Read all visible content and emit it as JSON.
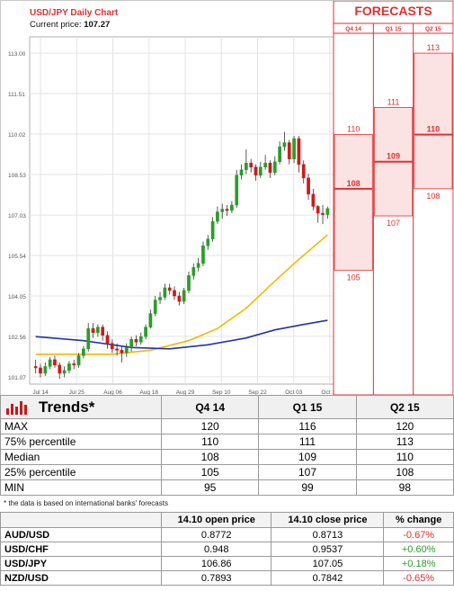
{
  "chart": {
    "title": "USD/JPY Daily Chart",
    "price_label": "Current price:",
    "price_value": "107.27",
    "forecasts_title": "FORECASTS"
  },
  "chart_data": {
    "type": "candlestick",
    "ylim": [
      100.8,
      113.6
    ],
    "y_ticks": [
      "113.00",
      "111.51",
      "110.02",
      "108.53",
      "107.03",
      "105.54",
      "104.05",
      "102.56",
      "101.07"
    ],
    "x_ticks": [
      "Jul 14",
      "Jul 25",
      "Aug 06",
      "Aug 18",
      "Aug 29",
      "Sep 10",
      "Sep 22",
      "Oct 03",
      "Oct 15"
    ],
    "candles": [
      [
        101.45,
        101.4,
        101.7,
        101.2
      ],
      [
        101.4,
        101.2,
        101.55,
        101.05
      ],
      [
        101.2,
        101.45,
        101.6,
        101.1
      ],
      [
        101.45,
        101.7,
        101.8,
        101.35
      ],
      [
        101.7,
        101.5,
        101.85,
        101.4
      ],
      [
        101.5,
        101.2,
        101.6,
        101.0
      ],
      [
        101.2,
        101.3,
        101.45,
        101.05
      ],
      [
        101.3,
        101.55,
        101.65,
        101.2
      ],
      [
        101.55,
        101.5,
        101.7,
        101.35
      ],
      [
        101.5,
        101.85,
        101.95,
        101.4
      ],
      [
        101.85,
        102.1,
        102.2,
        101.75
      ],
      [
        102.1,
        102.85,
        103.05,
        102.0
      ],
      [
        102.85,
        102.7,
        103.05,
        102.5
      ],
      [
        102.7,
        102.9,
        103.0,
        102.55
      ],
      [
        102.9,
        102.6,
        103.0,
        102.4
      ],
      [
        102.6,
        102.3,
        102.75,
        102.1
      ],
      [
        102.3,
        102.1,
        102.45,
        101.95
      ],
      [
        102.1,
        102.05,
        102.3,
        101.85
      ],
      [
        102.05,
        101.95,
        102.2,
        101.6
      ],
      [
        101.95,
        102.15,
        102.3,
        101.8
      ],
      [
        102.15,
        102.45,
        102.55,
        102.0
      ],
      [
        102.45,
        102.35,
        102.6,
        102.2
      ],
      [
        102.35,
        102.55,
        102.7,
        102.25
      ],
      [
        102.55,
        102.9,
        103.0,
        102.45
      ],
      [
        102.9,
        103.4,
        103.55,
        102.85
      ],
      [
        103.4,
        103.9,
        104.05,
        103.3
      ],
      [
        103.9,
        104.0,
        104.2,
        103.75
      ],
      [
        104.0,
        104.35,
        104.5,
        103.9
      ],
      [
        104.35,
        104.25,
        104.5,
        104.1
      ],
      [
        104.25,
        104.05,
        104.4,
        103.9
      ],
      [
        104.05,
        103.85,
        104.2,
        103.7
      ],
      [
        103.85,
        104.25,
        104.35,
        103.75
      ],
      [
        104.25,
        104.8,
        104.95,
        104.15
      ],
      [
        104.8,
        105.1,
        105.25,
        104.65
      ],
      [
        105.1,
        105.25,
        105.45,
        104.95
      ],
      [
        105.25,
        105.9,
        106.05,
        105.15
      ],
      [
        105.9,
        106.15,
        106.3,
        105.75
      ],
      [
        106.15,
        106.8,
        106.95,
        106.05
      ],
      [
        106.8,
        107.15,
        107.35,
        106.7
      ],
      [
        107.15,
        107.25,
        107.45,
        106.9
      ],
      [
        107.25,
        107.2,
        107.4,
        107.0
      ],
      [
        107.2,
        107.4,
        107.55,
        107.1
      ],
      [
        107.4,
        108.5,
        108.7,
        107.3
      ],
      [
        108.5,
        108.7,
        108.9,
        108.35
      ],
      [
        108.7,
        108.95,
        109.45,
        108.55
      ],
      [
        108.95,
        108.8,
        109.1,
        108.6
      ],
      [
        108.8,
        108.5,
        108.9,
        108.3
      ],
      [
        108.5,
        108.8,
        109.0,
        108.4
      ],
      [
        108.8,
        108.95,
        109.25,
        108.7
      ],
      [
        108.95,
        108.6,
        109.05,
        108.4
      ],
      [
        108.6,
        109.0,
        109.2,
        108.5
      ],
      [
        109.0,
        109.55,
        109.75,
        108.9
      ],
      [
        109.55,
        109.7,
        110.1,
        109.4
      ],
      [
        109.7,
        109.1,
        109.8,
        108.9
      ],
      [
        109.1,
        109.85,
        109.95,
        108.95
      ],
      [
        109.85,
        108.9,
        109.95,
        108.6
      ],
      [
        108.9,
        108.4,
        109.05,
        108.2
      ],
      [
        108.4,
        107.8,
        108.55,
        107.6
      ],
      [
        107.8,
        107.35,
        108.0,
        107.2
      ],
      [
        107.35,
        107.1,
        107.4,
        106.75
      ],
      [
        107.1,
        107.05,
        107.4,
        106.7
      ],
      [
        107.05,
        107.27,
        107.35,
        106.9
      ]
    ],
    "series": [
      {
        "name": "",
        "color": "#f5b800",
        "points": [
          [
            0,
            101.9
          ],
          [
            8,
            101.9
          ],
          [
            16,
            101.9
          ],
          [
            24,
            102.05
          ],
          [
            32,
            102.4
          ],
          [
            38,
            102.85
          ],
          [
            44,
            103.6
          ],
          [
            50,
            104.6
          ],
          [
            55,
            105.4
          ],
          [
            61,
            106.3
          ]
        ]
      },
      {
        "name": "",
        "color": "#2233aa",
        "points": [
          [
            0,
            102.55
          ],
          [
            10,
            102.4
          ],
          [
            20,
            102.15
          ],
          [
            28,
            102.1
          ],
          [
            36,
            102.25
          ],
          [
            44,
            102.5
          ],
          [
            50,
            102.8
          ],
          [
            56,
            103.0
          ],
          [
            61,
            103.15
          ]
        ]
      }
    ],
    "forecast_columns": [
      {
        "label": "Q4 14",
        "max": "110",
        "median": "108",
        "min": "105",
        "max_v": 110,
        "median_v": 108,
        "min_v": 105
      },
      {
        "label": "Q1 15",
        "max": "111",
        "median": "109",
        "min": "107",
        "max_v": 111,
        "median_v": 109,
        "min_v": 107
      },
      {
        "label": "Q2 15",
        "max": "113",
        "median": "110",
        "min": "108",
        "max_v": 113,
        "median_v": 110,
        "min_v": 108
      }
    ]
  },
  "trends": {
    "title": "Trends*",
    "headers": [
      "Q4 14",
      "Q1 15",
      "Q2 15"
    ],
    "rows": [
      {
        "label": "MAX",
        "values": [
          "120",
          "116",
          "120"
        ]
      },
      {
        "label": "75% percentile",
        "values": [
          "110",
          "111",
          "113"
        ]
      },
      {
        "label": "Median",
        "values": [
          "108",
          "109",
          "110"
        ]
      },
      {
        "label": "25% percentile",
        "values": [
          "105",
          "107",
          "108"
        ]
      },
      {
        "label": "MIN",
        "values": [
          "95",
          "99",
          "98"
        ]
      }
    ],
    "note": "* the data is based on international banks' forecasts"
  },
  "fx": {
    "headers": [
      "14.10 open price",
      "14.10 close price",
      "% change"
    ],
    "rows": [
      {
        "pair": "AUD/USD",
        "open": "0.8772",
        "close": "0.8713",
        "change": "-0.67%",
        "dir": "neg"
      },
      {
        "pair": "USD/CHF",
        "open": "0.948",
        "close": "0.9537",
        "change": "+0.60%",
        "dir": "pos"
      },
      {
        "pair": "USD/JPY",
        "open": "106.86",
        "close": "107.05",
        "change": "+0.18%",
        "dir": "pos"
      },
      {
        "pair": "NZD/USD",
        "open": "0.7893",
        "close": "0.7842",
        "change": "-0.65%",
        "dir": "neg"
      }
    ]
  },
  "colors": {
    "up": "#2a9d2a",
    "down": "#cc1a1a",
    "forecast_red": "#e03030",
    "forecast_fill": "#fbe3e3"
  }
}
